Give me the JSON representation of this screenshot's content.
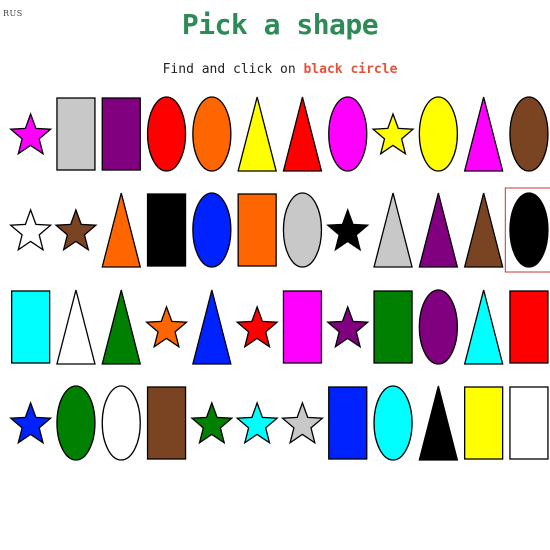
{
  "lang_label": "RUS",
  "title": "Pick a shape",
  "instruction": {
    "prefix": "Find and click on",
    "target": "black circle"
  },
  "colors": {
    "title": "#2e8b57",
    "target": "#e8503a",
    "highlight": "#cc3333"
  },
  "grid": {
    "rows": [
      [
        {
          "shape": "star",
          "color": "#ff00ff"
        },
        {
          "shape": "rect",
          "color": "#c8c8c8"
        },
        {
          "shape": "rect",
          "color": "#800080"
        },
        {
          "shape": "ellipse",
          "color": "#ff0000"
        },
        {
          "shape": "ellipse",
          "color": "#ff6600"
        },
        {
          "shape": "triangle",
          "color": "#ffff00"
        },
        {
          "shape": "triangle",
          "color": "#ff0000"
        },
        {
          "shape": "ellipse",
          "color": "#ff00ff"
        },
        {
          "shape": "star",
          "color": "#ffff00"
        },
        {
          "shape": "ellipse",
          "color": "#ffff00"
        },
        {
          "shape": "triangle",
          "color": "#ff00ff"
        },
        {
          "shape": "ellipse",
          "color": "#7a4422"
        }
      ],
      [
        {
          "shape": "star",
          "color": "#ffffff"
        },
        {
          "shape": "star",
          "color": "#7a4422"
        },
        {
          "shape": "triangle",
          "color": "#ff6600"
        },
        {
          "shape": "rect",
          "color": "#000000"
        },
        {
          "shape": "ellipse",
          "color": "#0022ff"
        },
        {
          "shape": "rect",
          "color": "#ff6600"
        },
        {
          "shape": "ellipse",
          "color": "#c8c8c8"
        },
        {
          "shape": "star",
          "color": "#000000"
        },
        {
          "shape": "triangle",
          "color": "#c8c8c8"
        },
        {
          "shape": "triangle",
          "color": "#800080"
        },
        {
          "shape": "triangle",
          "color": "#7a4422"
        },
        {
          "shape": "ellipse",
          "color": "#000000",
          "highlight": true
        }
      ],
      [
        {
          "shape": "rect",
          "color": "#00ffff"
        },
        {
          "shape": "triangle",
          "color": "#ffffff"
        },
        {
          "shape": "triangle",
          "color": "#008000"
        },
        {
          "shape": "star",
          "color": "#ff6600"
        },
        {
          "shape": "triangle",
          "color": "#0022ff"
        },
        {
          "shape": "star",
          "color": "#ff0000"
        },
        {
          "shape": "rect",
          "color": "#ff00ff"
        },
        {
          "shape": "star",
          "color": "#800080"
        },
        {
          "shape": "rect",
          "color": "#008000"
        },
        {
          "shape": "ellipse",
          "color": "#800080"
        },
        {
          "shape": "triangle",
          "color": "#00ffff"
        },
        {
          "shape": "rect",
          "color": "#ff0000"
        }
      ],
      [
        {
          "shape": "star",
          "color": "#0022ff"
        },
        {
          "shape": "ellipse",
          "color": "#008000"
        },
        {
          "shape": "ellipse",
          "color": "#ffffff"
        },
        {
          "shape": "rect",
          "color": "#7a4422"
        },
        {
          "shape": "star",
          "color": "#008000"
        },
        {
          "shape": "star",
          "color": "#00ffff"
        },
        {
          "shape": "star",
          "color": "#c8c8c8"
        },
        {
          "shape": "rect",
          "color": "#0022ff"
        },
        {
          "shape": "ellipse",
          "color": "#00ffff"
        },
        {
          "shape": "triangle",
          "color": "#000000"
        },
        {
          "shape": "rect",
          "color": "#ffff00"
        },
        {
          "shape": "rect",
          "color": "#ffffff"
        }
      ]
    ]
  }
}
